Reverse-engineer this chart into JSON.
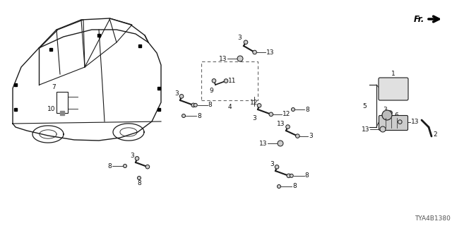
{
  "diagram_code": "TYA4B1380",
  "bg_color": "#ffffff",
  "lc": "#1a1a1a",
  "fig_width": 6.4,
  "fig_height": 3.2,
  "dpi": 100
}
